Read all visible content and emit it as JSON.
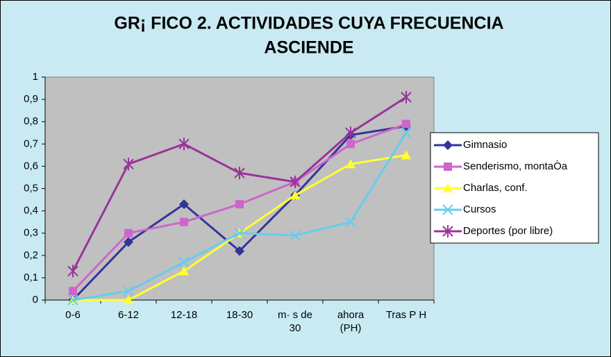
{
  "chart_data": {
    "type": "line",
    "title": [
      "GR¡ FICO 2. ACTIVIDADES CUYA FRECUENCIA",
      "ASCIENDE"
    ],
    "categories": [
      "0-6",
      "6-12",
      "12-18",
      "18-30",
      "m· s de 30",
      "ahora (PH)",
      "Tras P H"
    ],
    "ylim": [
      0,
      1
    ],
    "yticks": [
      0,
      {
        "value": 0.1,
        "label": "0,1"
      },
      {
        "value": 0.2,
        "label": "0,2"
      },
      {
        "value": 0.3,
        "label": "0,3"
      },
      {
        "value": 0.4,
        "label": "0,4"
      },
      {
        "value": 0.5,
        "label": "0,5"
      },
      {
        "value": 0.6,
        "label": "0,6"
      },
      {
        "value": 0.7,
        "label": "0,7"
      },
      {
        "value": 0.8,
        "label": "0,8"
      },
      {
        "value": 0.9,
        "label": "0,9"
      },
      1
    ],
    "grid": false,
    "legend": "right",
    "series": [
      {
        "name": "Gimnasio",
        "color": "#333399",
        "marker": "diamond",
        "values": [
          0,
          0.26,
          0.43,
          0.22,
          0.47,
          0.74,
          0.78
        ]
      },
      {
        "name": "Senderismo, montaÒa",
        "color": "#cc66cc",
        "marker": "square",
        "values": [
          0.04,
          0.3,
          0.35,
          0.43,
          0.53,
          0.7,
          0.79
        ]
      },
      {
        "name": "Charlas, conf.",
        "color": "#ffff33",
        "marker": "triangle",
        "values": [
          0,
          0,
          0.13,
          0.3,
          0.47,
          0.61,
          0.65
        ]
      },
      {
        "name": "Cursos",
        "color": "#66ccee",
        "marker": "x",
        "values": [
          0,
          0.04,
          0.17,
          0.3,
          0.29,
          0.35,
          0.75
        ]
      },
      {
        "name": "Deportes (por libre)",
        "color": "#993399",
        "marker": "star",
        "values": [
          0.13,
          0.61,
          0.7,
          0.57,
          0.53,
          0.75,
          0.91
        ]
      }
    ]
  }
}
